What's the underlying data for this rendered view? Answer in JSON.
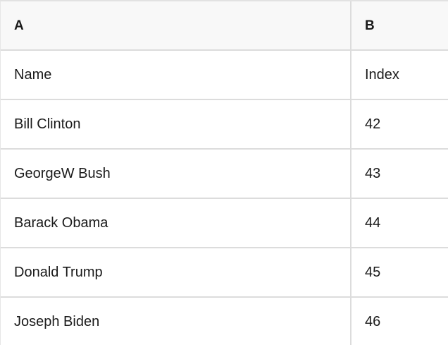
{
  "table": {
    "columns": [
      {
        "label": "A"
      },
      {
        "label": "B"
      }
    ],
    "rows": [
      {
        "a": "Name",
        "b": "Index"
      },
      {
        "a": "Bill Clinton",
        "b": "42"
      },
      {
        "a": "GeorgeW Bush",
        "b": "43"
      },
      {
        "a": "Barack Obama",
        "b": "44"
      },
      {
        "a": "Donald Trump",
        "b": "45"
      },
      {
        "a": "Joseph Biden",
        "b": "46"
      }
    ],
    "colors": {
      "header_background": "#f8f8f8",
      "row_background": "#ffffff",
      "gridline": "#dcdcdc",
      "text": "#1a1a1a"
    }
  }
}
